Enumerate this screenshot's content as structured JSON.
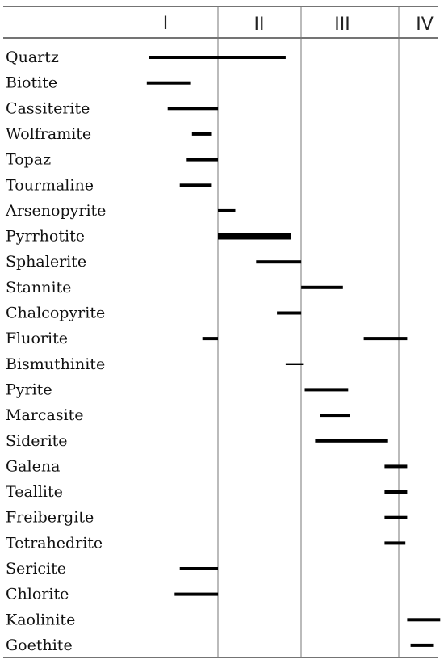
{
  "stages": [
    "I",
    "II",
    "III",
    "IV"
  ],
  "minerals": [
    {
      "name": "Quartz",
      "bars": [
        [
          0.0,
          4.6,
          1.0
        ],
        [
          4.6,
          7.9,
          1.0
        ]
      ]
    },
    {
      "name": "Biotite",
      "bars": [
        [
          -0.1,
          2.4,
          1.0
        ]
      ]
    },
    {
      "name": "Cassiterite",
      "bars": [
        [
          1.1,
          4.0,
          1.0
        ]
      ]
    },
    {
      "name": "Wolframite",
      "bars": [
        [
          2.5,
          3.6,
          1.0
        ]
      ]
    },
    {
      "name": "Topaz",
      "bars": [
        [
          2.2,
          4.0,
          1.0
        ]
      ]
    },
    {
      "name": "Tourmaline",
      "bars": [
        [
          1.8,
          3.6,
          1.0
        ]
      ]
    },
    {
      "name": "Arsenopyrite",
      "bars": [
        [
          4.0,
          5.0,
          1.0
        ]
      ]
    },
    {
      "name": "Pyrrhotite",
      "bars": [
        [
          4.0,
          8.2,
          2.0
        ]
      ]
    },
    {
      "name": "Sphalerite",
      "bars": [
        [
          6.2,
          8.8,
          1.0
        ]
      ]
    },
    {
      "name": "Stannite",
      "bars": [
        [
          8.8,
          11.2,
          1.0
        ]
      ]
    },
    {
      "name": "Chalcopyrite",
      "bars": [
        [
          7.4,
          8.8,
          1.0
        ]
      ]
    },
    {
      "name": "Fluorite",
      "bars": [
        [
          3.1,
          4.0,
          1.0
        ],
        [
          12.4,
          14.9,
          1.0
        ]
      ]
    },
    {
      "name": "Bismuthinite",
      "bars": [
        [
          7.9,
          8.9,
          0.6
        ]
      ]
    },
    {
      "name": "Pyrite",
      "bars": [
        [
          9.0,
          11.5,
          1.0
        ]
      ]
    },
    {
      "name": "Marcasite",
      "bars": [
        [
          9.9,
          11.6,
          1.0
        ]
      ]
    },
    {
      "name": "Siderite",
      "bars": [
        [
          9.6,
          13.8,
          1.0
        ]
      ]
    },
    {
      "name": "Galena",
      "bars": [
        [
          13.6,
          14.9,
          1.0
        ]
      ]
    },
    {
      "name": "Teallite",
      "bars": [
        [
          13.6,
          14.9,
          1.0
        ]
      ]
    },
    {
      "name": "Freibergite",
      "bars": [
        [
          13.6,
          14.9,
          1.0
        ]
      ]
    },
    {
      "name": "Tetrahedrite",
      "bars": [
        [
          13.6,
          14.8,
          1.0
        ]
      ]
    },
    {
      "name": "Sericite",
      "bars": [
        [
          1.8,
          4.0,
          1.0
        ]
      ]
    },
    {
      "name": "Chlorite",
      "bars": [
        [
          1.5,
          4.0,
          1.0
        ]
      ]
    },
    {
      "name": "Kaolinite",
      "bars": [
        [
          14.9,
          16.8,
          1.0
        ]
      ]
    },
    {
      "name": "Goethite",
      "bars": [
        [
          15.1,
          16.4,
          1.0
        ]
      ]
    }
  ]
}
